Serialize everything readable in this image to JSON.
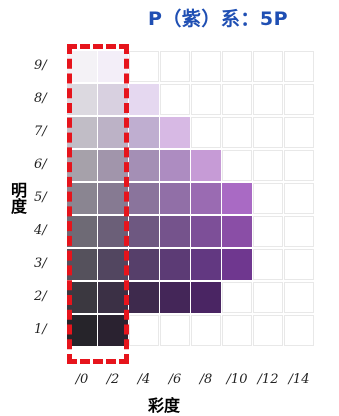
{
  "title": "P（紫）系：5P",
  "y_axis_title": "明度",
  "x_axis_title": "彩度",
  "y_labels": [
    "9/",
    "8/",
    "7/",
    "6/",
    "5/",
    "4/",
    "3/",
    "2/",
    "1/"
  ],
  "x_labels": [
    "/0",
    "/2",
    "/4",
    "/6",
    "/8",
    "/10",
    "/12",
    "/14"
  ],
  "highlight_color": "#e6141c",
  "title_color": "#1f4fb3",
  "grid_colors": [
    [
      "#f4f2f6",
      "#f3eef8",
      null,
      null,
      null,
      null,
      null,
      null
    ],
    [
      "#dcd9e0",
      "#d8d0e0",
      "#e5d8f0",
      null,
      null,
      null,
      null,
      null
    ],
    [
      "#c1bdc6",
      "#bcb2c6",
      "#bfaed0",
      "#d7b9e4",
      null,
      null,
      null,
      null
    ],
    [
      "#a6a1aa",
      "#a195ab",
      "#a48fb5",
      "#ad8cc1",
      "#c69bd6",
      null,
      null,
      null
    ],
    [
      "#8a8591",
      "#867a92",
      "#8a749c",
      "#916fa7",
      "#9a6bb2",
      "#a96ac4",
      null,
      null
    ],
    [
      "#6e6a75",
      "#6b5f78",
      "#6e5881",
      "#75538c",
      "#7d4f98",
      "#8a4ea6",
      null,
      null
    ],
    [
      "#55515c",
      "#524660",
      "#563f6a",
      "#5c3b75",
      "#623881",
      "#6f378f",
      null,
      null
    ],
    [
      "#3b3840",
      "#3b3045",
      "#3e2a4d",
      "#442658",
      "#4a2563",
      null,
      null,
      null
    ],
    [
      "#26242a",
      "#2a2230",
      null,
      null,
      null,
      null,
      null,
      null
    ]
  ]
}
